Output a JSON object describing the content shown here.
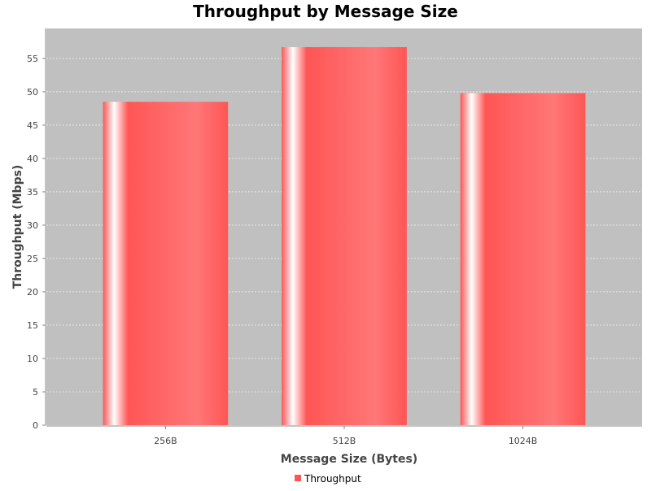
{
  "chart_data": {
    "type": "bar",
    "title": "Throughput by Message Size",
    "xlabel": "Message Size (Bytes)",
    "ylabel": "Throughput (Mbps)",
    "categories": [
      "256B",
      "512B",
      "1024B"
    ],
    "series": [
      {
        "name": "Throughput",
        "values": [
          48.5,
          56.7,
          49.8
        ]
      }
    ],
    "ylim": [
      0,
      59.5
    ],
    "yticks": [
      0,
      5,
      10,
      15,
      20,
      25,
      30,
      35,
      40,
      45,
      50,
      55
    ],
    "grid": true,
    "legend": "bottom-center",
    "colors": {
      "bar": "#ff5555",
      "plot_background": "#c0c0c0",
      "gridline": "#ffffff"
    }
  }
}
